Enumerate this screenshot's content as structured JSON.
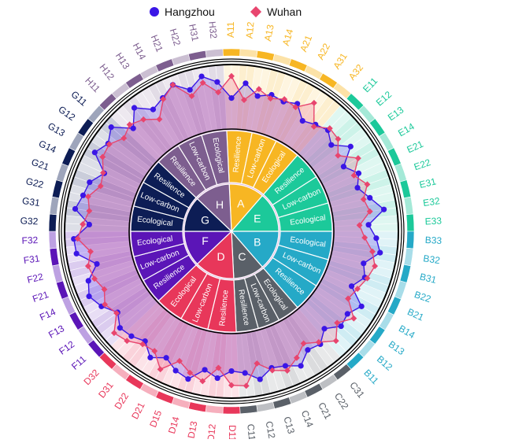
{
  "legend": {
    "hangzhou_label": "Hangzhou",
    "wuhan_label": "Wuhan"
  },
  "colors": {
    "hangzhou": "#3a16e6",
    "wuhan": "#e8456e"
  },
  "chart_data": {
    "type": "radar",
    "title": "",
    "radial_range": [
      0,
      1
    ],
    "grid": true,
    "legend_position": "top",
    "groups": [
      {
        "code": "A",
        "color": "#f7b623",
        "dims": [
          "Resilience",
          "Low-carbon",
          "Ecological"
        ],
        "labels": [
          "A11",
          "A12",
          "A13",
          "A14",
          "A21",
          "A22",
          "A31",
          "A32"
        ]
      },
      {
        "code": "E",
        "color": "#1cc99a",
        "dims": [
          "Resilience",
          "Low-carbon",
          "Ecological"
        ],
        "labels": [
          "E11",
          "E12",
          "E13",
          "E14",
          "E21",
          "E22",
          "E31",
          "E32",
          "E33"
        ]
      },
      {
        "code": "B",
        "color": "#25a9c7",
        "dims": [
          "Ecological",
          "Low-carbon",
          "Resilience"
        ],
        "labels": [
          "B33",
          "B32",
          "B31",
          "B22",
          "B21",
          "B14",
          "B13",
          "B12",
          "B11"
        ]
      },
      {
        "code": "C",
        "color": "#5a6068",
        "dims": [
          "Ecological",
          "Low-carbon",
          "Resilience"
        ],
        "labels": [
          "C31",
          "C22",
          "C21",
          "C14",
          "C13",
          "C12",
          "C11"
        ]
      },
      {
        "code": "D",
        "color": "#e8375a",
        "dims": [
          "Resilience",
          "Low-carbon",
          "Ecological"
        ],
        "labels": [
          "D11",
          "D12",
          "D13",
          "D14",
          "D15",
          "D21",
          "D22",
          "D31",
          "D32"
        ]
      },
      {
        "code": "F",
        "color": "#5b15b7",
        "dims": [
          "Resilience",
          "Low-carbon",
          "Ecological"
        ],
        "labels": [
          "F11",
          "F12",
          "F13",
          "F14",
          "F21",
          "F22",
          "F31",
          "F32"
        ]
      },
      {
        "code": "G",
        "color": "#0d1d55",
        "dims": [
          "Ecological",
          "Low-carbon",
          "Resilience"
        ],
        "labels": [
          "G32",
          "G31",
          "G22",
          "G21",
          "G14",
          "G13",
          "G12",
          "G11"
        ]
      },
      {
        "code": "H",
        "color": "#7d5e8f",
        "dims": [
          "Resilience",
          "Low-carbon",
          "Ecological"
        ],
        "labels": [
          "H11",
          "H12",
          "H13",
          "H14",
          "H21",
          "H22",
          "H31",
          "H32"
        ]
      }
    ],
    "series": [
      {
        "name": "Hangzhou",
        "values": [
          0.48,
          0.72,
          0.55,
          0.62,
          0.58,
          0.64,
          0.45,
          0.52,
          0.58,
          0.46,
          0.68,
          0.42,
          0.58,
          0.48,
          0.62,
          0.8,
          0.54,
          0.66,
          0.74,
          0.52,
          0.6,
          0.46,
          0.74,
          0.62,
          0.66,
          0.5,
          0.64,
          0.6,
          0.76,
          0.66,
          0.62,
          0.75,
          0.62,
          0.58,
          0.7,
          0.6,
          0.8,
          0.74,
          0.62,
          0.74,
          0.58,
          0.66,
          0.7,
          0.58,
          0.74,
          0.84,
          0.76,
          0.56,
          0.84,
          0.86,
          0.62,
          0.86,
          0.78,
          0.74,
          0.58,
          0.86,
          0.76,
          0.88,
          0.62,
          0.85,
          0.66,
          0.74,
          0.86,
          0.7,
          0.86,
          0.74
        ]
      },
      {
        "name": "Wuhan",
        "values": [
          0.82,
          0.46,
          0.66,
          0.56,
          0.62,
          0.58,
          0.78,
          0.48,
          0.62,
          0.6,
          0.44,
          0.68,
          0.5,
          0.64,
          0.52,
          0.58,
          0.4,
          0.48,
          0.62,
          0.7,
          0.64,
          0.56,
          0.5,
          0.74,
          0.58,
          0.76,
          0.6,
          0.48,
          0.62,
          0.74,
          0.66,
          0.5,
          0.82,
          0.8,
          0.54,
          0.78,
          0.7,
          0.58,
          0.82,
          0.62,
          0.64,
          0.76,
          0.82,
          0.6,
          0.68,
          0.58,
          0.66,
          0.7,
          0.62,
          0.8,
          0.72,
          0.64,
          0.7,
          0.56,
          0.6,
          0.72,
          0.74,
          0.62,
          0.7,
          0.62,
          0.48,
          0.72,
          0.86,
          0.6,
          0.76,
          0.58
        ]
      }
    ]
  }
}
